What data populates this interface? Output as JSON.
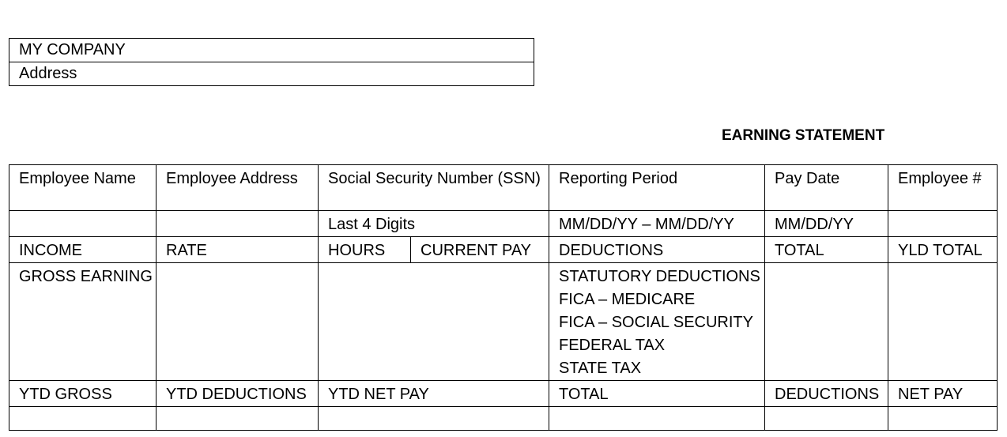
{
  "company": {
    "name": "MY COMPANY",
    "address": "Address"
  },
  "title": "EARNING STATEMENT",
  "header_row": [
    "Employee Name",
    "Employee Address",
    "Social Security Number (SSN)",
    "Reporting Period",
    "Pay Date",
    "Employee #"
  ],
  "sub_row": {
    "ssn": "Last 4 Digits",
    "period": "MM/DD/YY – MM/DD/YY",
    "pay_date": "MM/DD/YY"
  },
  "income_row": [
    "INCOME",
    "RATE",
    "HOURS",
    "CURRENT PAY",
    "DEDUCTIONS",
    "TOTAL",
    "YLD TOTAL"
  ],
  "gross_earning": "GROSS EARNING",
  "deductions": [
    "STATUTORY DEDUCTIONS",
    "FICA – MEDICARE",
    "FICA – SOCIAL SECURITY",
    "FEDERAL TAX",
    "STATE TAX"
  ],
  "ytd_row": [
    "YTD GROSS",
    "YTD DEDUCTIONS",
    "YTD NET PAY",
    "TOTAL",
    "DEDUCTIONS",
    "NET PAY"
  ]
}
